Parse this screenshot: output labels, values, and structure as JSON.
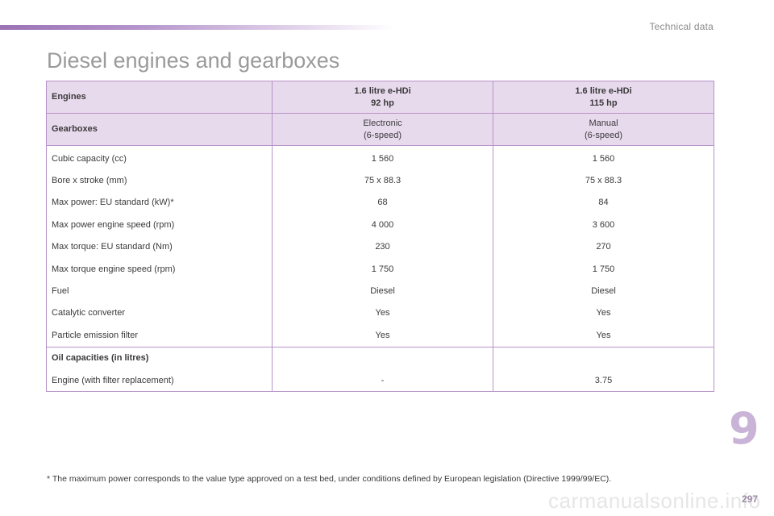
{
  "header": {
    "section": "Technical data"
  },
  "title": "Diesel engines and gearboxes",
  "table": {
    "engines_label": "Engines",
    "engines": [
      {
        "line1": "1.6 litre e-HDi",
        "line2": "92 hp"
      },
      {
        "line1": "1.6 litre e-HDi",
        "line2": "115 hp"
      }
    ],
    "gearboxes_label": "Gearboxes",
    "gearboxes": [
      {
        "line1": "Electronic",
        "line2": "(6-speed)"
      },
      {
        "line1": "Manual",
        "line2": "(6-speed)"
      }
    ],
    "rows": [
      {
        "label": "Cubic capacity (cc)",
        "v1": "1 560",
        "v2": "1 560"
      },
      {
        "label": "Bore x stroke (mm)",
        "v1": "75 x 88.3",
        "v2": "75 x 88.3"
      },
      {
        "label": "Max power: EU standard (kW)*",
        "v1": "68",
        "v2": "84"
      },
      {
        "label": "Max power engine speed (rpm)",
        "v1": "4 000",
        "v2": "3 600"
      },
      {
        "label": "Max torque: EU standard (Nm)",
        "v1": "230",
        "v2": "270"
      },
      {
        "label": "Max torque engine speed (rpm)",
        "v1": "1 750",
        "v2": "1 750"
      },
      {
        "label": "Fuel",
        "v1": "Diesel",
        "v2": "Diesel"
      },
      {
        "label": "Catalytic converter",
        "v1": "Yes",
        "v2": "Yes"
      },
      {
        "label": "Particle emission filter",
        "v1": "Yes",
        "v2": "Yes"
      }
    ],
    "oil_title": "Oil capacities (in litres)",
    "oil_row": {
      "label": "Engine (with filter replacement)",
      "v1": "-",
      "v2": "3.75"
    }
  },
  "footnote": "* The maximum power corresponds to the value type approved on a test bed, under conditions defined by European legislation (Directive 1999/99/EC).",
  "chapter": "9",
  "page_number": "297",
  "watermark": "carmanualsonline.info",
  "colors": {
    "accent": "#9b72b4",
    "header_fill": "#e8daed",
    "border": "#b892c9"
  }
}
